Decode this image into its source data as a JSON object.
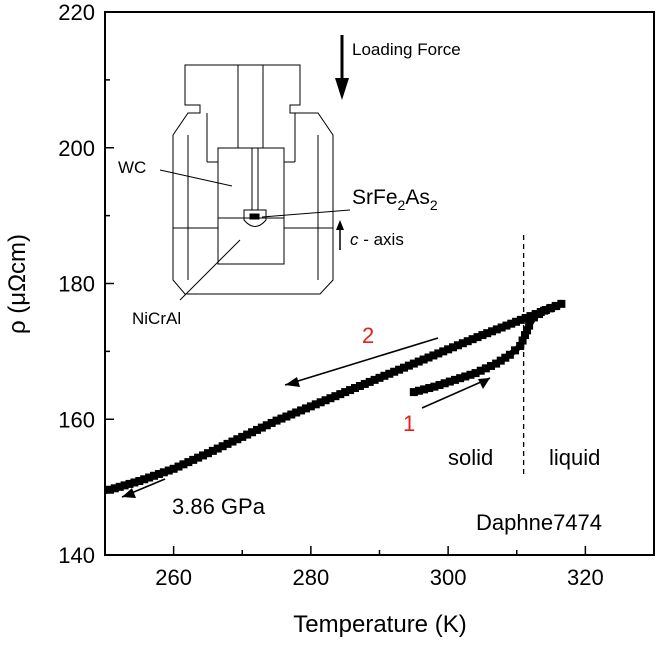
{
  "chart_data": {
    "type": "line",
    "xlabel": "Temperature (K)",
    "ylabel": "ρ (μΩcm)",
    "xlim": [
      250,
      330
    ],
    "ylim": [
      140,
      220
    ],
    "xticks": [
      260,
      280,
      300,
      320
    ],
    "yticks": [
      140,
      160,
      180,
      200,
      220
    ],
    "xtick_labels": [
      "260",
      "280",
      "300",
      "320"
    ],
    "ytick_labels": [
      "140",
      "160",
      "180",
      "200",
      "220"
    ],
    "grid": false,
    "series": [
      {
        "name": "",
        "marker": "square",
        "color": "#000000",
        "x": [
          295.0,
          298.0,
          301.0,
          304.0,
          307.0,
          309.0,
          310.5,
          311.2,
          311.8,
          312.5,
          314.0,
          316.5
        ],
        "y": [
          164.0,
          164.8,
          165.8,
          166.8,
          168.2,
          169.5,
          170.8,
          172.4,
          173.8,
          175.0,
          176.0,
          177.0
        ]
      },
      {
        "name": "",
        "marker": "square",
        "color": "#000000",
        "x": [
          316.5,
          312.0,
          305.0,
          300.0,
          295.0,
          290.0,
          285.0,
          280.0,
          275.0,
          270.0,
          265.0,
          260.0,
          255.0,
          250.0
        ],
        "y": [
          177.0,
          175.2,
          172.4,
          170.3,
          168.2,
          166.1,
          164.0,
          161.9,
          159.8,
          157.4,
          155.0,
          152.7,
          150.9,
          149.4
        ]
      }
    ],
    "vline": {
      "x": 311
    },
    "annotations": {
      "label_2": "2",
      "label_1": "1",
      "solid": "solid",
      "liquid": "liquid",
      "pressure": "3.86 GPa",
      "medium": "Daphne7474",
      "highlight_color": "#e8201a"
    },
    "inset": {
      "loading_force": "Loading Force",
      "wc": "WC",
      "nicral": "NiCrAl",
      "sample_main": "SrFe",
      "sample_sub1": "2",
      "sample_mid": "As",
      "sample_sub2": "2",
      "axis_italic": "c",
      "axis_rest": " - axis"
    }
  }
}
